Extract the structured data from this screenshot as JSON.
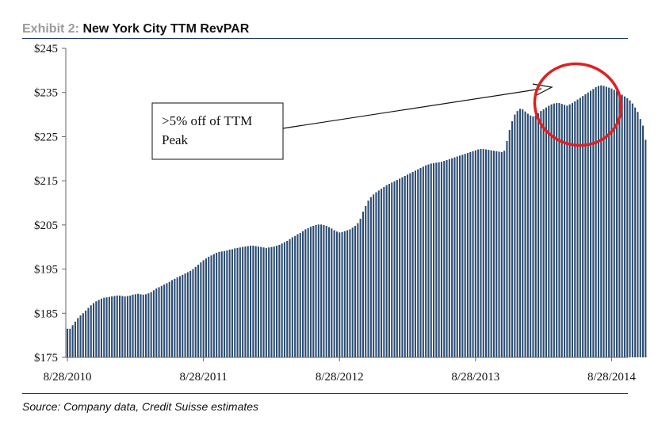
{
  "header": {
    "exhibit_label": "Exhibit 2:",
    "title": "New York City TTM RevPAR"
  },
  "source": "Source: Company data, Credit Suisse estimates",
  "annotation": {
    "line1": ">5% off  of TTM",
    "line2": "Peak",
    "highlight_color": "#e02020"
  },
  "colors": {
    "bar": "#2b4c73",
    "rule": "#1f3864",
    "exhibit_label": "#9a9a9a"
  },
  "chart_data": {
    "type": "bar",
    "title": "New York City TTM RevPAR",
    "xlabel": "",
    "ylabel": "",
    "ylim": [
      175,
      245
    ],
    "yticks": [
      "$175",
      "$185",
      "$195",
      "$205",
      "$215",
      "$225",
      "$235",
      "$245"
    ],
    "ytick_values": [
      175,
      185,
      195,
      205,
      215,
      225,
      235,
      245
    ],
    "xticks": [
      "8/28/2010",
      "8/28/2011",
      "8/28/2012",
      "8/28/2013",
      "8/28/2014"
    ],
    "xtick_positions": [
      0,
      52,
      104,
      156,
      208
    ],
    "grid": false,
    "series": [
      {
        "values": [
          181.5,
          181.5,
          182.3,
          183.1,
          183.9,
          184.5,
          185.0,
          185.6,
          186.2,
          186.8,
          187.3,
          187.7,
          188.0,
          188.3,
          188.5,
          188.6,
          188.7,
          188.8,
          188.9,
          189.0,
          189.0,
          188.9,
          188.8,
          188.9,
          189.0,
          189.2,
          189.3,
          189.4,
          189.3,
          189.2,
          189.3,
          189.5,
          189.8,
          190.2,
          190.6,
          190.9,
          191.2,
          191.5,
          191.8,
          192.1,
          192.5,
          192.8,
          193.1,
          193.4,
          193.7,
          194.0,
          194.3,
          194.6,
          195.0,
          195.5,
          196.0,
          196.5,
          197.0,
          197.4,
          197.8,
          198.1,
          198.4,
          198.7,
          198.9,
          199.0,
          199.1,
          199.2,
          199.4,
          199.5,
          199.7,
          199.8,
          199.9,
          200.0,
          200.1,
          200.2,
          200.3,
          200.3,
          200.2,
          200.1,
          200.0,
          199.9,
          199.8,
          199.9,
          200.0,
          200.1,
          200.3,
          200.5,
          200.8,
          201.1,
          201.4,
          201.8,
          202.2,
          202.5,
          202.9,
          203.2,
          203.6,
          204.0,
          204.3,
          204.6,
          204.8,
          205.0,
          205.1,
          205.1,
          205.0,
          204.8,
          204.5,
          204.2,
          203.8,
          203.5,
          203.3,
          203.4,
          203.6,
          203.8,
          204.0,
          204.4,
          204.8,
          205.4,
          206.4,
          208.0,
          209.3,
          210.5,
          211.3,
          211.9,
          212.4,
          212.8,
          213.2,
          213.6,
          214.0,
          214.3,
          214.6,
          214.9,
          215.2,
          215.5,
          215.8,
          216.1,
          216.4,
          216.7,
          217.0,
          217.3,
          217.6,
          217.9,
          218.2,
          218.5,
          218.7,
          218.9,
          219.0,
          219.1,
          219.2,
          219.3,
          219.5,
          219.7,
          219.9,
          220.1,
          220.3,
          220.5,
          220.7,
          220.9,
          221.1,
          221.3,
          221.5,
          221.7,
          221.9,
          222.1,
          222.2,
          222.2,
          222.1,
          222.0,
          221.9,
          221.8,
          221.7,
          221.6,
          221.5,
          221.8,
          224.0,
          226.5,
          228.5,
          230.0,
          230.8,
          231.3,
          231.2,
          230.7,
          230.2,
          229.8,
          229.6,
          229.8,
          230.3,
          230.8,
          231.2,
          231.6,
          232.0,
          232.3,
          232.5,
          232.6,
          232.6,
          232.4,
          232.2,
          232.0,
          232.3,
          232.6,
          233.0,
          233.4,
          233.8,
          234.2,
          234.6,
          235.0,
          235.4,
          235.8,
          236.2,
          236.5,
          236.6,
          236.5,
          236.3,
          236.1,
          235.9,
          235.6,
          235.3,
          234.9,
          234.5,
          234.1,
          233.7,
          233.2,
          232.5,
          231.6,
          230.6,
          229.0,
          227.5,
          224.3
        ]
      }
    ]
  }
}
